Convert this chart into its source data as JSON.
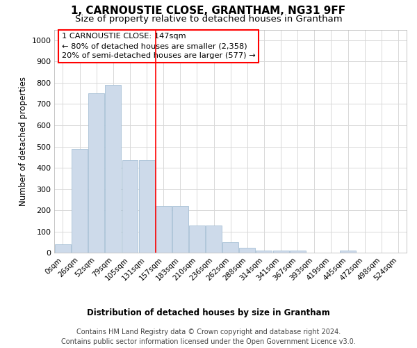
{
  "title": "1, CARNOUSTIE CLOSE, GRANTHAM, NG31 9FF",
  "subtitle": "Size of property relative to detached houses in Grantham",
  "xlabel": "Distribution of detached houses by size in Grantham",
  "ylabel": "Number of detached properties",
  "bar_color": "#cddaea",
  "bar_edge_color": "#a8c0d6",
  "vline_color": "red",
  "annotation_text": "1 CARNOUSTIE CLOSE: 147sqm\n← 80% of detached houses are smaller (2,358)\n20% of semi-detached houses are larger (577) →",
  "categories": [
    "0sqm",
    "26sqm",
    "52sqm",
    "79sqm",
    "105sqm",
    "131sqm",
    "157sqm",
    "183sqm",
    "210sqm",
    "236sqm",
    "262sqm",
    "288sqm",
    "314sqm",
    "341sqm",
    "367sqm",
    "393sqm",
    "419sqm",
    "445sqm",
    "472sqm",
    "498sqm",
    "524sqm"
  ],
  "bar_heights": [
    40,
    490,
    750,
    790,
    435,
    435,
    220,
    220,
    130,
    130,
    50,
    25,
    10,
    10,
    10,
    0,
    0,
    10,
    0,
    0,
    0
  ],
  "ylim": [
    0,
    1050
  ],
  "yticks": [
    0,
    100,
    200,
    300,
    400,
    500,
    600,
    700,
    800,
    900,
    1000
  ],
  "footnote": "Contains HM Land Registry data © Crown copyright and database right 2024.\nContains public sector information licensed under the Open Government Licence v3.0.",
  "background_color": "#ffffff",
  "grid_color": "#d8d8d8",
  "vline_index": 6
}
